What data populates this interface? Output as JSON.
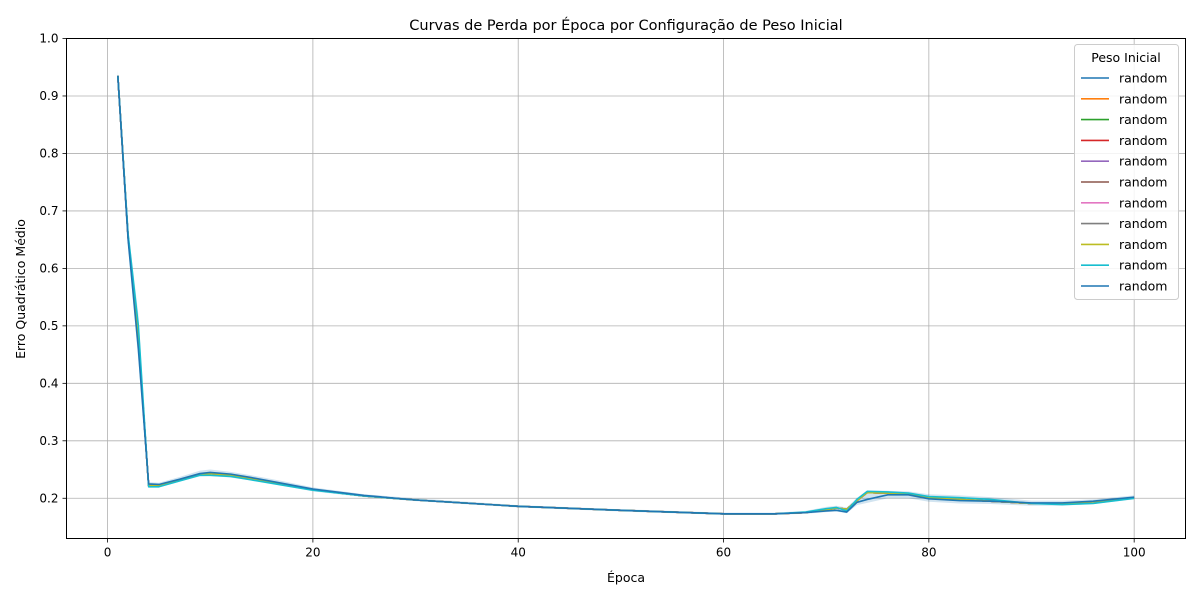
{
  "chart_data": {
    "type": "line",
    "title": "Curvas de Perda por Época por Configuração de Peso Inicial",
    "xlabel": "Época",
    "ylabel": "Erro Quadrático Médio",
    "xlim": [
      -4,
      105
    ],
    "ylim": [
      0.13,
      1.0
    ],
    "xticks": [
      0,
      20,
      40,
      60,
      80,
      100
    ],
    "yticks": [
      0.2,
      0.3,
      0.4,
      0.5,
      0.6,
      0.7,
      0.8,
      0.9,
      1.0
    ],
    "grid": true,
    "legend_title": "Peso Inicial",
    "legend_position": "top-right",
    "keypoints_x": [
      1,
      2,
      3,
      4,
      5,
      7,
      9,
      10,
      12,
      14,
      17,
      20,
      25,
      30,
      40,
      50,
      60,
      65,
      68,
      70,
      71,
      72,
      73,
      74,
      76,
      78,
      80,
      83,
      86,
      90,
      93,
      96,
      100
    ],
    "series": [
      {
        "name": "random",
        "color": "#1f77b4",
        "values": [
          0.935,
          0.655,
          0.48,
          0.222,
          0.222,
          0.232,
          0.242,
          0.243,
          0.24,
          0.234,
          0.225,
          0.215,
          0.204,
          0.197,
          0.186,
          0.179,
          0.173,
          0.173,
          0.175,
          0.18,
          0.183,
          0.181,
          0.196,
          0.21,
          0.209,
          0.208,
          0.201,
          0.198,
          0.195,
          0.191,
          0.191,
          0.194,
          0.201
        ]
      },
      {
        "name": "random",
        "color": "#ff7f0e",
        "values": [
          0.935,
          0.655,
          0.48,
          0.222,
          0.222,
          0.232,
          0.242,
          0.243,
          0.24,
          0.234,
          0.225,
          0.215,
          0.204,
          0.197,
          0.186,
          0.179,
          0.173,
          0.173,
          0.175,
          0.18,
          0.183,
          0.181,
          0.196,
          0.21,
          0.209,
          0.208,
          0.201,
          0.198,
          0.195,
          0.191,
          0.191,
          0.194,
          0.201
        ]
      },
      {
        "name": "random",
        "color": "#2ca02c",
        "values": [
          0.935,
          0.655,
          0.48,
          0.222,
          0.222,
          0.232,
          0.242,
          0.243,
          0.24,
          0.234,
          0.225,
          0.215,
          0.204,
          0.197,
          0.186,
          0.179,
          0.173,
          0.173,
          0.175,
          0.18,
          0.183,
          0.181,
          0.196,
          0.21,
          0.209,
          0.208,
          0.201,
          0.198,
          0.195,
          0.191,
          0.191,
          0.194,
          0.201
        ]
      },
      {
        "name": "random",
        "color": "#d62728",
        "values": [
          0.935,
          0.655,
          0.48,
          0.222,
          0.222,
          0.232,
          0.242,
          0.243,
          0.24,
          0.234,
          0.225,
          0.215,
          0.204,
          0.197,
          0.186,
          0.179,
          0.173,
          0.173,
          0.175,
          0.18,
          0.183,
          0.181,
          0.196,
          0.21,
          0.209,
          0.208,
          0.201,
          0.198,
          0.195,
          0.191,
          0.191,
          0.194,
          0.201
        ]
      },
      {
        "name": "random",
        "color": "#9467bd",
        "values": [
          0.935,
          0.655,
          0.48,
          0.222,
          0.222,
          0.232,
          0.242,
          0.243,
          0.24,
          0.234,
          0.225,
          0.215,
          0.204,
          0.197,
          0.186,
          0.179,
          0.173,
          0.173,
          0.175,
          0.18,
          0.183,
          0.181,
          0.196,
          0.21,
          0.209,
          0.208,
          0.201,
          0.198,
          0.195,
          0.191,
          0.191,
          0.194,
          0.201
        ]
      },
      {
        "name": "random",
        "color": "#8c564b",
        "values": [
          0.935,
          0.655,
          0.48,
          0.222,
          0.222,
          0.232,
          0.242,
          0.243,
          0.24,
          0.234,
          0.225,
          0.215,
          0.204,
          0.197,
          0.186,
          0.179,
          0.173,
          0.173,
          0.175,
          0.18,
          0.183,
          0.181,
          0.196,
          0.21,
          0.209,
          0.208,
          0.201,
          0.198,
          0.195,
          0.191,
          0.191,
          0.194,
          0.201
        ]
      },
      {
        "name": "random",
        "color": "#e377c2",
        "values": [
          0.935,
          0.655,
          0.48,
          0.222,
          0.222,
          0.232,
          0.242,
          0.243,
          0.24,
          0.234,
          0.225,
          0.215,
          0.204,
          0.197,
          0.186,
          0.179,
          0.173,
          0.173,
          0.175,
          0.18,
          0.183,
          0.181,
          0.196,
          0.21,
          0.209,
          0.208,
          0.201,
          0.198,
          0.195,
          0.191,
          0.191,
          0.194,
          0.201
        ]
      },
      {
        "name": "random",
        "color": "#7f7f7f",
        "values": [
          0.935,
          0.655,
          0.48,
          0.222,
          0.222,
          0.232,
          0.242,
          0.243,
          0.24,
          0.234,
          0.225,
          0.215,
          0.204,
          0.197,
          0.186,
          0.179,
          0.173,
          0.173,
          0.175,
          0.18,
          0.183,
          0.181,
          0.196,
          0.21,
          0.209,
          0.208,
          0.201,
          0.198,
          0.195,
          0.191,
          0.191,
          0.194,
          0.201
        ]
      },
      {
        "name": "random",
        "color": "#bcbd22",
        "values": [
          0.935,
          0.655,
          0.48,
          0.222,
          0.222,
          0.232,
          0.242,
          0.243,
          0.24,
          0.234,
          0.225,
          0.215,
          0.204,
          0.197,
          0.186,
          0.179,
          0.173,
          0.173,
          0.175,
          0.18,
          0.183,
          0.181,
          0.196,
          0.21,
          0.209,
          0.208,
          0.201,
          0.198,
          0.195,
          0.191,
          0.191,
          0.194,
          0.201
        ]
      },
      {
        "name": "random",
        "color": "#17becf",
        "values": [
          0.935,
          0.66,
          0.5,
          0.22,
          0.22,
          0.23,
          0.24,
          0.24,
          0.238,
          0.232,
          0.223,
          0.214,
          0.204,
          0.197,
          0.186,
          0.179,
          0.173,
          0.173,
          0.176,
          0.182,
          0.184,
          0.178,
          0.198,
          0.212,
          0.211,
          0.209,
          0.203,
          0.201,
          0.198,
          0.191,
          0.189,
          0.191,
          0.2
        ]
      },
      {
        "name": "random",
        "color": "#1f77b4",
        "values": [
          0.935,
          0.65,
          0.46,
          0.225,
          0.224,
          0.233,
          0.243,
          0.245,
          0.242,
          0.236,
          0.226,
          0.216,
          0.205,
          0.197,
          0.186,
          0.179,
          0.173,
          0.173,
          0.175,
          0.178,
          0.179,
          0.176,
          0.193,
          0.198,
          0.206,
          0.206,
          0.199,
          0.196,
          0.195,
          0.192,
          0.192,
          0.195,
          0.202
        ]
      }
    ],
    "band": {
      "color": "#1f77b4",
      "lower": [
        0.925,
        0.64,
        0.44,
        0.219,
        0.219,
        0.229,
        0.238,
        0.239,
        0.236,
        0.231,
        0.222,
        0.212,
        0.202,
        0.195,
        0.184,
        0.177,
        0.171,
        0.171,
        0.173,
        0.176,
        0.177,
        0.174,
        0.188,
        0.192,
        0.2,
        0.2,
        0.194,
        0.191,
        0.19,
        0.187,
        0.187,
        0.19,
        0.198
      ],
      "upper": [
        0.945,
        0.67,
        0.52,
        0.228,
        0.227,
        0.237,
        0.248,
        0.25,
        0.246,
        0.24,
        0.23,
        0.219,
        0.207,
        0.2,
        0.188,
        0.181,
        0.175,
        0.175,
        0.178,
        0.185,
        0.187,
        0.184,
        0.201,
        0.214,
        0.213,
        0.212,
        0.207,
        0.205,
        0.202,
        0.196,
        0.196,
        0.198,
        0.205
      ]
    }
  }
}
